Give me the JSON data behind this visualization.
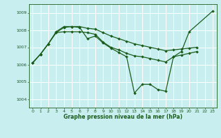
{
  "background_color": "#c8eef0",
  "grid_color": "#ffffff",
  "line_color": "#1a5c1a",
  "title": "Graphe pression niveau de la mer (hPa)",
  "ylim": [
    1003.5,
    1009.5
  ],
  "yticks": [
    1004,
    1005,
    1006,
    1007,
    1008,
    1009
  ],
  "xlim": [
    -0.5,
    23.5
  ],
  "xticks": [
    0,
    1,
    2,
    3,
    4,
    5,
    6,
    7,
    8,
    9,
    10,
    11,
    12,
    13,
    14,
    15,
    16,
    17,
    18,
    19,
    20,
    21,
    22,
    23
  ],
  "series_a_x": [
    0,
    1,
    2,
    3,
    4,
    5,
    6,
    7,
    8,
    9,
    10,
    11,
    12,
    13,
    14,
    15,
    16,
    17,
    18,
    19,
    20,
    23
  ],
  "series_a_y": [
    1006.1,
    1006.6,
    1007.2,
    1007.9,
    1008.2,
    1008.2,
    1008.15,
    1007.5,
    1007.65,
    1007.25,
    1006.95,
    1006.7,
    1006.45,
    1004.35,
    1004.85,
    1004.85,
    1004.55,
    1004.45,
    1006.45,
    1006.75,
    1007.9,
    1009.1
  ],
  "series_b_x": [
    0,
    1,
    2,
    3,
    4,
    5,
    6,
    7,
    8,
    9,
    10,
    11,
    12,
    13,
    14,
    15,
    16,
    17,
    18,
    19,
    20,
    21
  ],
  "series_b_y": [
    1006.1,
    1006.6,
    1007.2,
    1007.85,
    1008.15,
    1008.2,
    1008.2,
    1008.1,
    1008.05,
    1007.85,
    1007.65,
    1007.5,
    1007.35,
    1007.2,
    1007.1,
    1007.0,
    1006.9,
    1006.8,
    1006.85,
    1006.9,
    1006.95,
    1007.0
  ],
  "series_c_x": [
    0,
    1,
    2,
    3,
    4,
    5,
    6,
    7,
    8,
    9,
    10,
    11,
    12,
    13,
    14,
    15,
    16,
    17,
    18,
    19,
    20,
    21
  ],
  "series_c_y": [
    1006.1,
    1006.6,
    1007.2,
    1007.85,
    1007.9,
    1007.9,
    1007.9,
    1007.85,
    1007.75,
    1007.3,
    1007.0,
    1006.85,
    1006.65,
    1006.5,
    1006.45,
    1006.35,
    1006.25,
    1006.15,
    1006.45,
    1006.55,
    1006.65,
    1006.75
  ]
}
